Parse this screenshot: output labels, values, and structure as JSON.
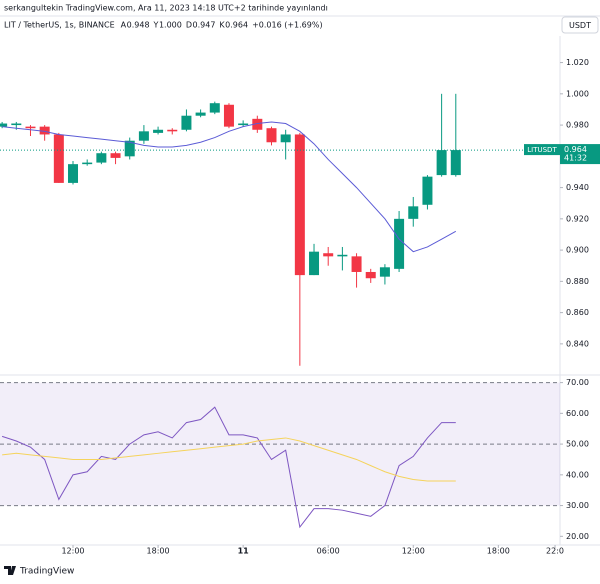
{
  "header": {
    "published": "serkangultekin TradingView.com, Ara 11, 2023 14:18 UTC+2 tarihinde yayınlandı"
  },
  "chart_data": [
    {
      "type": "candlestick",
      "symbol": "LIT / TetherUS, 1s, BINANCE",
      "ohlc_legend": [
        {
          "key": "A",
          "value": "0.948"
        },
        {
          "key": "Y",
          "value": "1.000"
        },
        {
          "key": "D",
          "value": "0.947"
        },
        {
          "key": "K",
          "value": "0.964"
        }
      ],
      "change": "+0.016 (+1.69%)",
      "currency": "USDT",
      "x": [
        0,
        1,
        2,
        3,
        4,
        5,
        6,
        7,
        8,
        9,
        10,
        11,
        12,
        13,
        14,
        15,
        16,
        17,
        18,
        19,
        20,
        21,
        22,
        23,
        24,
        25,
        26,
        27,
        28,
        29,
        30,
        31,
        32
      ],
      "xlim": [
        -0.15,
        39.35
      ],
      "xticks": [
        {
          "value": 5,
          "label": "12:00"
        },
        {
          "value": 11,
          "label": "18:00"
        },
        {
          "value": 17,
          "label": "11"
        },
        {
          "value": 23,
          "label": "06:00"
        },
        {
          "value": 29,
          "label": "12:00"
        },
        {
          "value": 35,
          "label": "18:00"
        },
        {
          "value": 39,
          "label": "22:0"
        }
      ],
      "ylim": [
        0.822,
        1.037
      ],
      "yticks": [
        {
          "value": 1.02,
          "label": "1.020"
        },
        {
          "value": 1.0,
          "label": "1.000"
        },
        {
          "value": 0.98,
          "label": "0.980"
        },
        {
          "value": 0.94,
          "label": "0.940"
        },
        {
          "value": 0.92,
          "label": "0.920"
        },
        {
          "value": 0.9,
          "label": "0.900"
        },
        {
          "value": 0.88,
          "label": "0.880"
        },
        {
          "value": 0.86,
          "label": "0.860"
        },
        {
          "value": 0.84,
          "label": "0.840"
        }
      ],
      "up_color": "#089981",
      "down_color": "#f23645",
      "open": [
        0.979,
        0.98,
        0.979,
        0.979,
        0.974,
        0.943,
        0.955,
        0.956,
        0.962,
        0.96,
        0.97,
        0.975,
        0.977,
        0.977,
        0.986,
        0.988,
        0.993,
        0.98,
        0.984,
        0.978,
        0.969,
        0.974,
        0.884,
        0.898,
        0.896,
        0.896,
        0.886,
        0.883,
        0.888,
        0.92,
        0.929,
        0.948,
        0.948
      ],
      "high": [
        0.982,
        0.982,
        0.98,
        0.98,
        0.975,
        0.957,
        0.958,
        0.963,
        0.963,
        0.972,
        0.98,
        0.979,
        0.978,
        0.99,
        0.99,
        0.995,
        0.994,
        0.983,
        0.986,
        0.979,
        0.977,
        0.975,
        0.904,
        0.902,
        0.902,
        0.898,
        0.888,
        0.891,
        0.925,
        0.934,
        0.948,
        1.0,
        1.0
      ],
      "low": [
        0.978,
        0.977,
        0.973,
        0.97,
        0.943,
        0.942,
        0.954,
        0.955,
        0.955,
        0.958,
        0.968,
        0.974,
        0.974,
        0.976,
        0.985,
        0.987,
        0.978,
        0.979,
        0.975,
        0.967,
        0.958,
        0.826,
        0.884,
        0.89,
        0.887,
        0.876,
        0.879,
        0.878,
        0.886,
        0.915,
        0.926,
        0.947,
        0.947
      ],
      "close": [
        0.981,
        0.981,
        0.978,
        0.974,
        0.943,
        0.955,
        0.956,
        0.962,
        0.959,
        0.97,
        0.976,
        0.977,
        0.976,
        0.986,
        0.988,
        0.994,
        0.979,
        0.981,
        0.977,
        0.969,
        0.974,
        0.884,
        0.899,
        0.896,
        0.897,
        0.886,
        0.882,
        0.889,
        0.92,
        0.928,
        0.947,
        0.964,
        0.964
      ],
      "ma": {
        "color": "#5b5bd6",
        "values": [
          0.979,
          0.978,
          0.977,
          0.976,
          0.974,
          0.973,
          0.972,
          0.971,
          0.97,
          0.969,
          0.967,
          0.966,
          0.966,
          0.967,
          0.969,
          0.972,
          0.976,
          0.979,
          0.981,
          0.982,
          0.981,
          0.976,
          0.968,
          0.958,
          0.949,
          0.94,
          0.93,
          0.92,
          0.907,
          0.899,
          0.902,
          0.907,
          0.912
        ]
      },
      "last_price": 0.964,
      "last_symbol": "LITUSDT",
      "countdown": "41:32"
    },
    {
      "type": "rsi",
      "ylim": [
        17.5,
        71.5
      ],
      "yticks": [
        {
          "value": 70,
          "label": "70.00"
        },
        {
          "value": 60,
          "label": "60.00"
        },
        {
          "value": 50,
          "label": "50.00"
        },
        {
          "value": 40,
          "label": "40.00"
        },
        {
          "value": 30,
          "label": "30.00"
        },
        {
          "value": 20,
          "label": "20.00"
        }
      ],
      "band": [
        30,
        70
      ],
      "band_lines": [
        70,
        50,
        30
      ],
      "series": [
        {
          "color": "#7e57c2",
          "values": [
            52.5,
            51,
            49,
            45,
            32,
            40,
            41,
            46,
            45,
            50,
            53,
            54,
            52,
            57,
            58,
            62,
            53,
            53,
            52,
            45,
            48,
            23,
            29,
            29,
            28.5,
            27.5,
            26.5,
            30,
            43,
            46,
            52,
            57,
            57
          ]
        },
        {
          "color": "#f5d35c",
          "values": [
            46.5,
            47,
            46.5,
            46,
            45.5,
            45,
            45,
            45,
            45.5,
            46,
            46.5,
            47,
            47.5,
            48,
            48.5,
            49,
            49.5,
            50,
            51,
            51.5,
            52,
            51,
            49.5,
            48,
            46.5,
            45,
            43,
            41,
            39.5,
            38.5,
            38,
            38,
            38
          ]
        }
      ]
    }
  ],
  "footer": {
    "brand": "TradingView"
  }
}
